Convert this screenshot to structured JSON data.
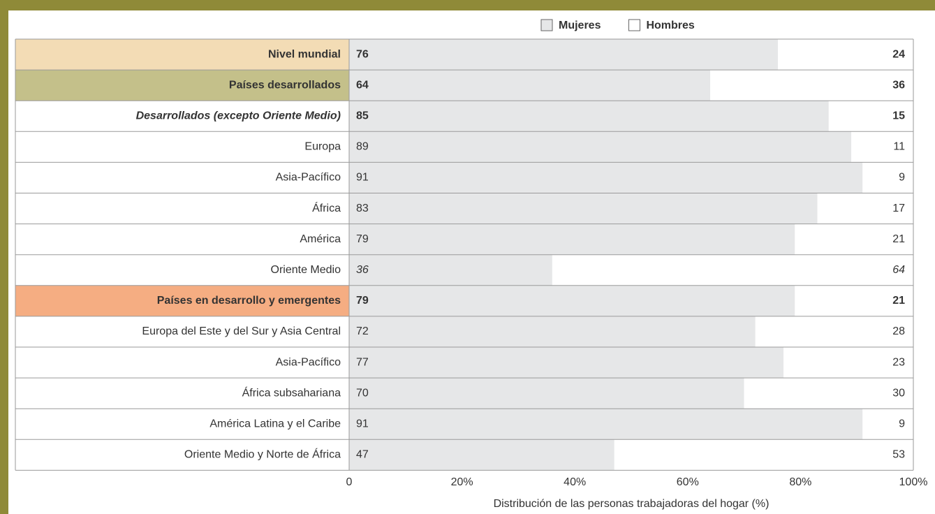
{
  "chart_data": {
    "type": "stacked-barh",
    "xlabel": "Distribución de las personas trabajadoras del hogar (%)",
    "categories": [
      "Nivel mundial",
      "Países desarrollados",
      "Desarrollados (excepto Oriente Medio)",
      "Europa",
      "Asia-Pacífico",
      "África",
      "América",
      "Oriente Medio",
      "Países en desarrollo y emergentes",
      "Europa del Este y del Sur y Asia Central",
      "Asia-Pacífico",
      "África subsahariana",
      "América Latina y el Caribe",
      "Oriente Medio y Norte de África"
    ],
    "category_colors": [
      "#f3dcb5",
      "#c4c08a",
      null,
      null,
      null,
      null,
      null,
      null,
      "#f5ad82",
      null,
      null,
      null,
      null,
      null
    ],
    "series": [
      {
        "name": "Mujeres",
        "color": "#e6e7e8",
        "values": [
          76,
          64,
          85,
          89,
          91,
          83,
          79,
          36,
          79,
          72,
          77,
          70,
          91,
          47
        ]
      },
      {
        "name": "Hombres",
        "color": "#ffffff",
        "values": [
          24,
          36,
          15,
          11,
          9,
          17,
          21,
          64,
          21,
          28,
          23,
          30,
          9,
          53
        ]
      }
    ],
    "xlim": [
      0,
      100
    ],
    "xticks": [
      0,
      {
        "value": 20,
        "label": "20%"
      },
      {
        "value": 40,
        "label": "40%"
      },
      {
        "value": 60,
        "label": "60%"
      },
      {
        "value": 80,
        "label": "80%"
      },
      {
        "value": 100,
        "label": "100%"
      }
    ],
    "legend": "top"
  }
}
